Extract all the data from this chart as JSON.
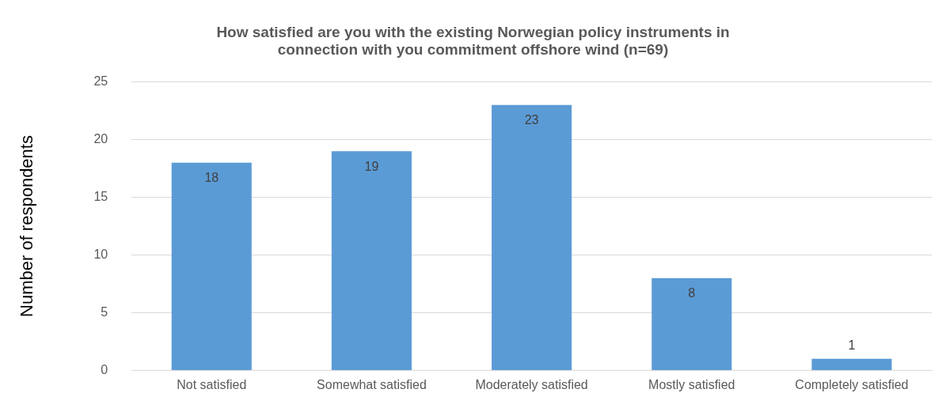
{
  "chart_data": {
    "type": "bar",
    "title": [
      "How satisfied are you with the existing Norwegian policy instruments in",
      "connection with you commitment offshore wind (n=69)"
    ],
    "ylabel": "Number of respondents",
    "categories": [
      "Not satisfied",
      "Somewhat satisfied",
      "Moderately satisfied",
      "Mostly satisfied",
      "Completely satisfied"
    ],
    "values": [
      18,
      19,
      23,
      8,
      1
    ],
    "color": "#5b9bd5",
    "ylim": [
      0,
      25
    ],
    "yticks": [
      0,
      5,
      10,
      15,
      20,
      25
    ],
    "grid": "y",
    "legend": false,
    "data_labels": true
  }
}
